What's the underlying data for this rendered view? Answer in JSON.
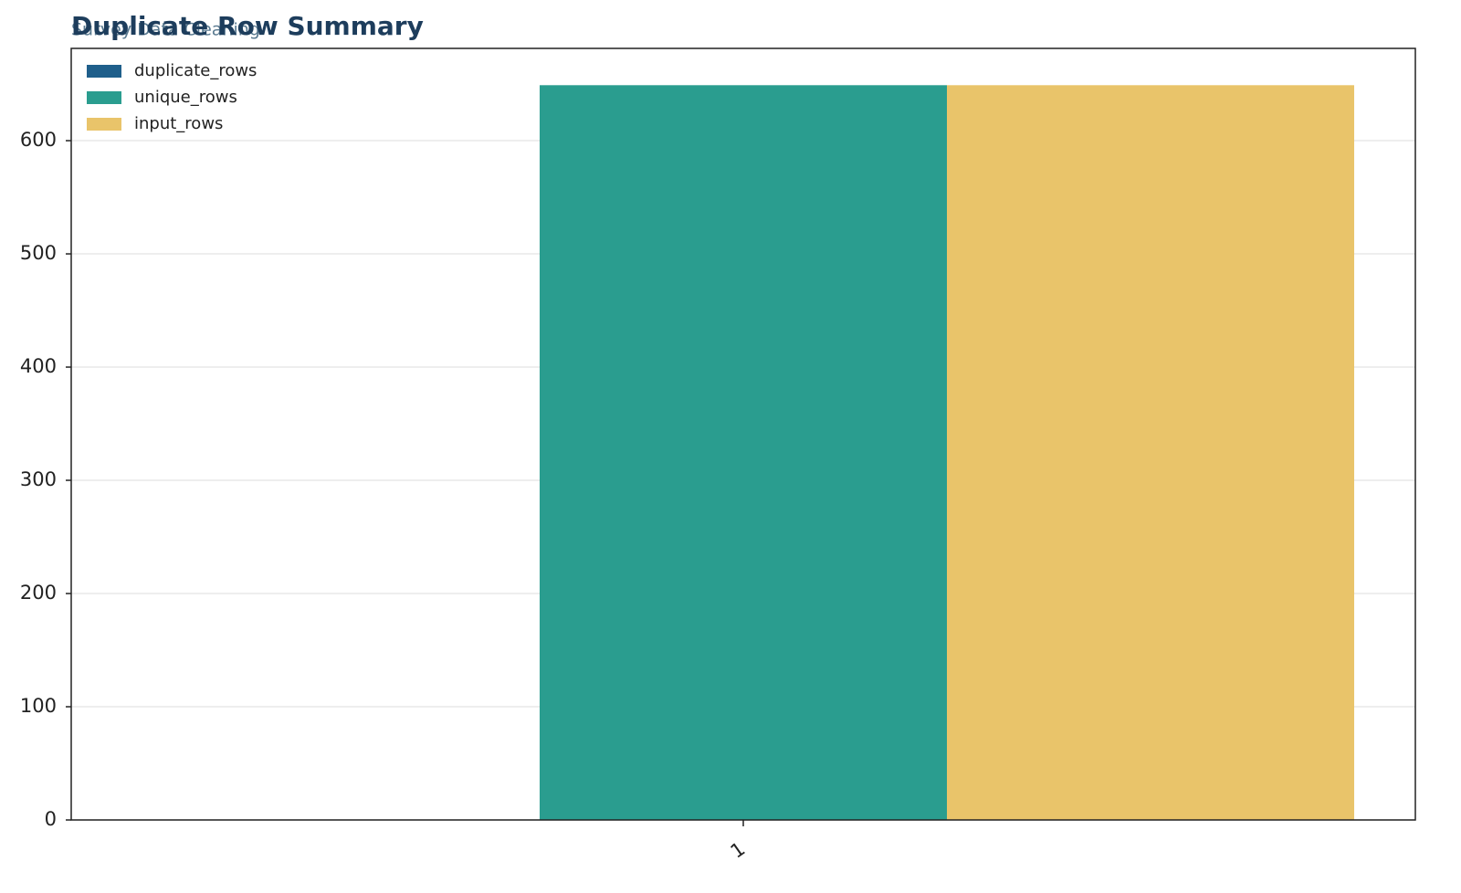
{
  "chart_data": {
    "type": "bar",
    "title": "Duplicate Row Summary",
    "subtitle": "Survey Data Cleaning",
    "categories": [
      "1"
    ],
    "series": [
      {
        "name": "duplicate_rows",
        "color": "#1f5f8b",
        "values": [
          0
        ]
      },
      {
        "name": "unique_rows",
        "color": "#2a9d8f",
        "values": [
          649
        ]
      },
      {
        "name": "input_rows",
        "color": "#e9c46a",
        "values": [
          649
        ]
      }
    ],
    "ylim": [
      0,
      681.5
    ],
    "yticks": [
      0,
      100,
      200,
      300,
      400,
      500,
      600
    ],
    "grid": true,
    "legend": "upper-left"
  }
}
